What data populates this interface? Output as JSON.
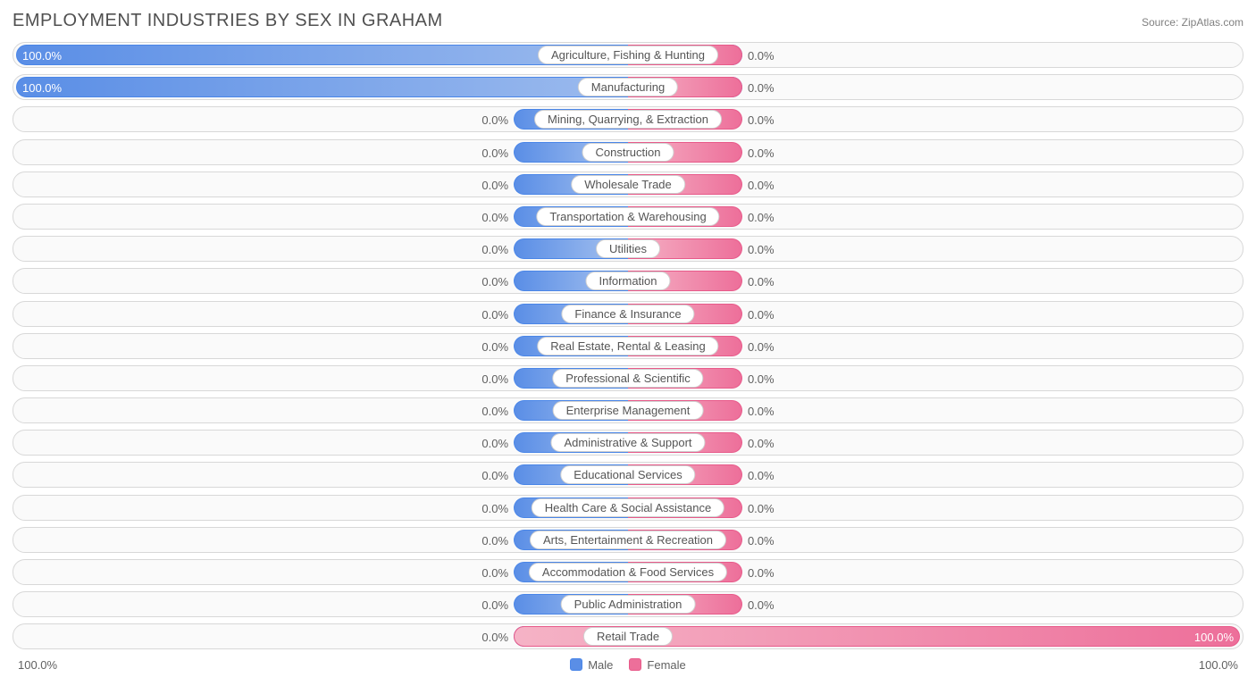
{
  "title": "EMPLOYMENT INDUSTRIES BY SEX IN GRAHAM",
  "source": "Source: ZipAtlas.com",
  "colors": {
    "male_fill_left": "#5a8ee6",
    "male_fill_right": "#a8c3ef",
    "male_border": "#4a86e8",
    "female_fill_left": "#f5b3c6",
    "female_fill_right": "#ed6f9a",
    "female_border": "#e85a8a",
    "row_bg": "#fafafa",
    "row_border": "#d8d8d8",
    "label_bg": "#ffffff",
    "label_border": "#d0d0d0",
    "text": "#606060",
    "title_text": "#505050"
  },
  "chart": {
    "type": "diverging-bar",
    "default_bar_half_pct": 9.3,
    "axis_left_label": "100.0%",
    "axis_right_label": "100.0%",
    "rows": [
      {
        "label": "Agriculture, Fishing & Hunting",
        "male": 100.0,
        "female": 0.0
      },
      {
        "label": "Manufacturing",
        "male": 100.0,
        "female": 0.0
      },
      {
        "label": "Mining, Quarrying, & Extraction",
        "male": 0.0,
        "female": 0.0
      },
      {
        "label": "Construction",
        "male": 0.0,
        "female": 0.0
      },
      {
        "label": "Wholesale Trade",
        "male": 0.0,
        "female": 0.0
      },
      {
        "label": "Transportation & Warehousing",
        "male": 0.0,
        "female": 0.0
      },
      {
        "label": "Utilities",
        "male": 0.0,
        "female": 0.0
      },
      {
        "label": "Information",
        "male": 0.0,
        "female": 0.0
      },
      {
        "label": "Finance & Insurance",
        "male": 0.0,
        "female": 0.0
      },
      {
        "label": "Real Estate, Rental & Leasing",
        "male": 0.0,
        "female": 0.0
      },
      {
        "label": "Professional & Scientific",
        "male": 0.0,
        "female": 0.0
      },
      {
        "label": "Enterprise Management",
        "male": 0.0,
        "female": 0.0
      },
      {
        "label": "Administrative & Support",
        "male": 0.0,
        "female": 0.0
      },
      {
        "label": "Educational Services",
        "male": 0.0,
        "female": 0.0
      },
      {
        "label": "Health Care & Social Assistance",
        "male": 0.0,
        "female": 0.0
      },
      {
        "label": "Arts, Entertainment & Recreation",
        "male": 0.0,
        "female": 0.0
      },
      {
        "label": "Accommodation & Food Services",
        "male": 0.0,
        "female": 0.0
      },
      {
        "label": "Public Administration",
        "male": 0.0,
        "female": 0.0
      },
      {
        "label": "Retail Trade",
        "male": 0.0,
        "female": 100.0
      }
    ]
  },
  "legend": {
    "male": "Male",
    "female": "Female"
  }
}
